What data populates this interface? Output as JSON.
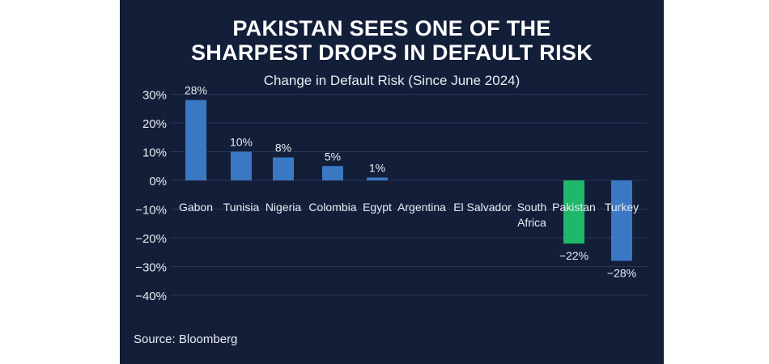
{
  "chart_data": {
    "type": "bar",
    "title_line1": "PAKISTAN SEES ONE OF THE",
    "title_line2": "SHARPEST DROPS IN DEFAULT RISK",
    "subtitle": "Change in Default Risk (Since June 2024)",
    "source": "Source: Bloomberg",
    "xlabel": "",
    "ylabel": "",
    "ylim": [
      -40,
      30
    ],
    "yticks": [
      30,
      20,
      10,
      0,
      -10,
      -20,
      -30,
      -40
    ],
    "ytick_labels": [
      "30%",
      "20%",
      "10%",
      "0%",
      "−10%",
      "−20%",
      "−30%",
      "−40%"
    ],
    "grid": true,
    "categories": [
      "Gabon",
      "Tunisia",
      "Nigeria",
      "Colombia",
      "Egypt",
      "Argentina",
      "El Salvador",
      "South Africa",
      "Pakistan",
      "Turkey"
    ],
    "values": [
      28,
      10,
      8,
      5,
      1,
      null,
      null,
      null,
      -22,
      -28
    ],
    "data_labels": [
      "28%",
      "10%",
      "8%",
      "5%",
      "1%",
      "",
      "",
      "",
      "−22%",
      "−28%"
    ],
    "colors": {
      "default": "#3b78c4",
      "highlight": "#1db86a",
      "highlight_category": "Pakistan",
      "background": "#131e39"
    }
  }
}
